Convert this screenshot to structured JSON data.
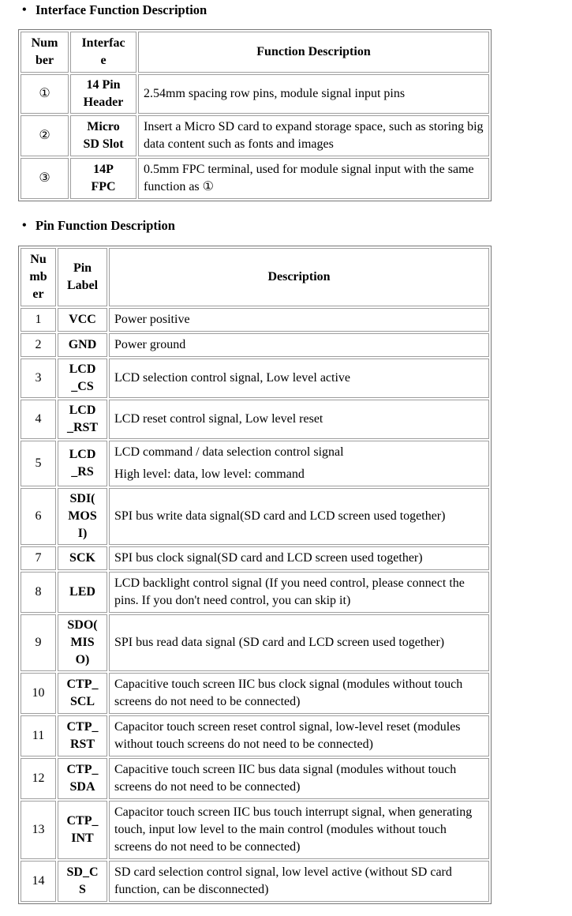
{
  "interface_section": {
    "bullet": "•",
    "title": "Interface Function Description",
    "table": {
      "headers": [
        "Number",
        "Interface",
        "Function Description"
      ],
      "headers_display": [
        "Num\nber",
        "Interfac\ne",
        "Function Description"
      ],
      "rows": [
        {
          "number": "①",
          "label": "14 Pin\nHeader",
          "description": "2.54mm spacing row pins, module signal input pins"
        },
        {
          "number": "②",
          "label": "Micro\nSD Slot",
          "description": "Insert a Micro SD card to expand storage space, such as storing big data content such as fonts and images"
        },
        {
          "number": "③",
          "label": "14P\nFPC",
          "description": "0.5mm FPC terminal, used for module signal input with the same function as ①"
        }
      ]
    }
  },
  "pin_section": {
    "bullet": "•",
    "title": "Pin Function Description",
    "table": {
      "headers": [
        "Number",
        "Pin Label",
        "Description"
      ],
      "headers_display": [
        "Nu\nmb\ner",
        "Pin\nLabel",
        "Description"
      ],
      "rows": [
        {
          "number": "1",
          "label": "VCC",
          "description": "Power positive"
        },
        {
          "number": "2",
          "label": "GND",
          "description": "Power ground"
        },
        {
          "number": "3",
          "label": "LCD\n_CS",
          "description": "LCD selection control signal, Low level active"
        },
        {
          "number": "4",
          "label": "LCD\n_RST",
          "description": "LCD reset control signal, Low level reset"
        },
        {
          "number": "5",
          "label": "LCD\n_RS",
          "description": "LCD command / data selection control signal\nHigh level: data, low level: command"
        },
        {
          "number": "6",
          "label": "SDI(\nMOS\nI)",
          "description": "SPI bus write data signal(SD card and LCD screen used together)"
        },
        {
          "number": "7",
          "label": "SCK",
          "description": "SPI bus clock signal(SD card and LCD screen used together)"
        },
        {
          "number": "8",
          "label": "LED",
          "description": "LCD backlight control signal (If you need control, please connect the pins. If you don't need control, you can skip it)"
        },
        {
          "number": "9",
          "label": "SDO(\nMIS\nO)",
          "description": "SPI bus read data signal (SD card and LCD screen used together)"
        },
        {
          "number": "10",
          "label": "CTP_\nSCL",
          "description": "Capacitive touch screen IIC bus clock signal (modules without touch screens do not need to be connected)"
        },
        {
          "number": "11",
          "label": "CTP_\nRST",
          "description": "Capacitor touch screen reset control signal, low-level reset (modules without touch screens do not need to be connected)"
        },
        {
          "number": "12",
          "label": "CTP_\nSDA",
          "description": "Capacitive touch screen IIC bus data signal (modules without touch screens do not need to be connected)"
        },
        {
          "number": "13",
          "label": "CTP_\nINT",
          "description": "Capacitor touch screen IIC bus touch interrupt signal, when generating touch, input low level to the main control (modules without touch screens do not need to be connected)"
        },
        {
          "number": "14",
          "label": "SD_C\nS",
          "description": "SD card selection control signal, low level active (without SD card function, can be disconnected)"
        }
      ]
    }
  }
}
